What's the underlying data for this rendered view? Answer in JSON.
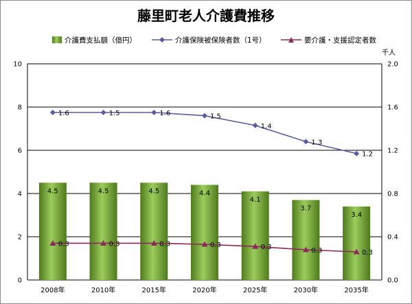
{
  "chart_data": {
    "type": "bar",
    "title": "藤里町老人介護費推移",
    "categories": [
      "2008年",
      "2010年",
      "2015年",
      "2020年",
      "2025年",
      "2030年",
      "2035年"
    ],
    "y_left": {
      "ylim": [
        0,
        10
      ],
      "ticks": [
        "0",
        "2",
        "4",
        "6",
        "8",
        "10"
      ]
    },
    "y_right": {
      "unit": "千人",
      "ylim": [
        0,
        2.0
      ],
      "ticks": [
        "0.0",
        "0.4",
        "0.8",
        "1.2",
        "1.6",
        "2.0"
      ]
    },
    "grid": true,
    "legend_position": "top",
    "series": [
      {
        "name": "介護費支払額（億円）",
        "kind": "bar",
        "axis": "left",
        "color": "#6d9a2f",
        "values": [
          4.5,
          4.5,
          4.5,
          4.4,
          4.1,
          3.7,
          3.4
        ],
        "labels": [
          "4.5",
          "4.5",
          "4.5",
          "4.4",
          "4.1",
          "3.7",
          "3.4"
        ]
      },
      {
        "name": "介護保険被保険者数（1号）",
        "kind": "line",
        "axis": "right",
        "color": "#5a5ea0",
        "marker": "diamond",
        "values": [
          1.55,
          1.55,
          1.55,
          1.52,
          1.43,
          1.28,
          1.17
        ],
        "labels": [
          "1.6",
          "1.5",
          "1.6",
          "1.5",
          "1.4",
          "1.3",
          "1.2"
        ]
      },
      {
        "name": "要介護・支援認定者数",
        "kind": "line",
        "axis": "right",
        "color": "#8b2a58",
        "marker": "triangle",
        "values": [
          0.34,
          0.34,
          0.34,
          0.33,
          0.31,
          0.28,
          0.26
        ],
        "labels": [
          "0.3",
          "0.3",
          "0.3",
          "0.3",
          "0.3",
          "0.3",
          "0.3"
        ]
      }
    ]
  }
}
